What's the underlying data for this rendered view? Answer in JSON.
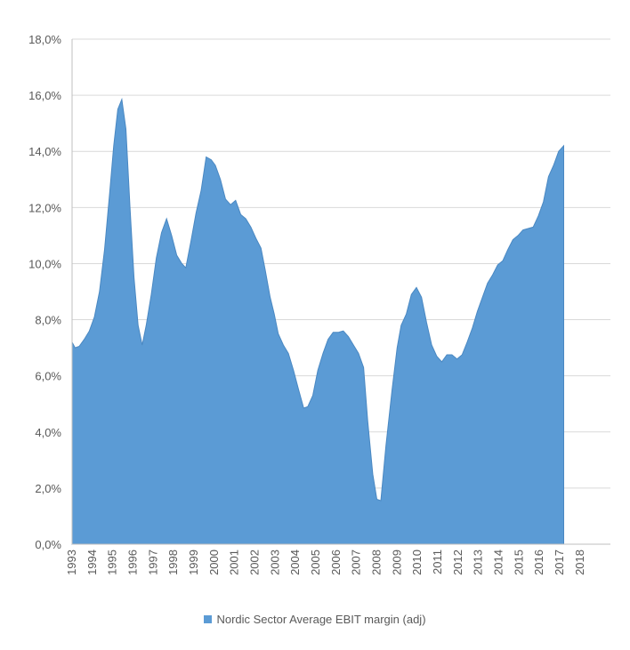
{
  "chart_data": {
    "type": "area",
    "title": "",
    "xlabel": "",
    "ylabel": "",
    "ylim": [
      0,
      18
    ],
    "y_ticks": [
      "0,0%",
      "2,0%",
      "4,0%",
      "6,0%",
      "8,0%",
      "10,0%",
      "12,0%",
      "14,0%",
      "16,0%",
      "18,0%"
    ],
    "x_tick_labels": [
      "1993",
      "1994",
      "1995",
      "1996",
      "1997",
      "1998",
      "1999",
      "2000",
      "2001",
      "2002",
      "2003",
      "2004",
      "2005",
      "2006",
      "2007",
      "2008",
      "2009",
      "2010",
      "2011",
      "2012",
      "2013",
      "2014",
      "2015",
      "2016",
      "2017",
      "2018"
    ],
    "x_range": [
      1993.0,
      2019.5
    ],
    "grid": true,
    "legend_position": "bottom",
    "series": [
      {
        "name": "Nordic Sector Average EBIT margin (adj)",
        "color": "#5b9bd5",
        "points": [
          [
            1993.0,
            7.2
          ],
          [
            1993.15,
            7.0
          ],
          [
            1993.35,
            7.05
          ],
          [
            1993.6,
            7.3
          ],
          [
            1993.85,
            7.6
          ],
          [
            1994.1,
            8.1
          ],
          [
            1994.35,
            9.0
          ],
          [
            1994.6,
            10.5
          ],
          [
            1994.85,
            12.5
          ],
          [
            1995.05,
            14.2
          ],
          [
            1995.25,
            15.5
          ],
          [
            1995.45,
            15.85
          ],
          [
            1995.65,
            14.8
          ],
          [
            1995.85,
            12.0
          ],
          [
            1996.05,
            9.5
          ],
          [
            1996.25,
            7.8
          ],
          [
            1996.45,
            7.1
          ],
          [
            1996.65,
            7.8
          ],
          [
            1996.9,
            8.9
          ],
          [
            1997.15,
            10.2
          ],
          [
            1997.4,
            11.1
          ],
          [
            1997.65,
            11.6
          ],
          [
            1997.9,
            11.0
          ],
          [
            1998.15,
            10.3
          ],
          [
            1998.4,
            10.0
          ],
          [
            1998.6,
            9.85
          ],
          [
            1998.85,
            10.8
          ],
          [
            1999.1,
            11.8
          ],
          [
            1999.35,
            12.6
          ],
          [
            1999.6,
            13.8
          ],
          [
            1999.85,
            13.7
          ],
          [
            2000.05,
            13.5
          ],
          [
            2000.3,
            13.0
          ],
          [
            2000.55,
            12.3
          ],
          [
            2000.8,
            12.1
          ],
          [
            2001.05,
            12.25
          ],
          [
            2001.3,
            11.75
          ],
          [
            2001.55,
            11.6
          ],
          [
            2001.8,
            11.3
          ],
          [
            2002.05,
            10.9
          ],
          [
            2002.3,
            10.55
          ],
          [
            2002.5,
            9.8
          ],
          [
            2002.75,
            8.8
          ],
          [
            2002.95,
            8.2
          ],
          [
            2003.15,
            7.5
          ],
          [
            2003.4,
            7.1
          ],
          [
            2003.65,
            6.8
          ],
          [
            2003.9,
            6.2
          ],
          [
            2004.15,
            5.5
          ],
          [
            2004.4,
            4.85
          ],
          [
            2004.6,
            4.9
          ],
          [
            2004.85,
            5.3
          ],
          [
            2005.1,
            6.2
          ],
          [
            2005.35,
            6.8
          ],
          [
            2005.6,
            7.3
          ],
          [
            2005.85,
            7.55
          ],
          [
            2006.1,
            7.55
          ],
          [
            2006.35,
            7.6
          ],
          [
            2006.6,
            7.4
          ],
          [
            2006.85,
            7.1
          ],
          [
            2007.1,
            6.8
          ],
          [
            2007.35,
            6.3
          ],
          [
            2007.55,
            4.4
          ],
          [
            2007.8,
            2.5
          ],
          [
            2008.0,
            1.6
          ],
          [
            2008.2,
            1.55
          ],
          [
            2008.45,
            3.5
          ],
          [
            2008.75,
            5.5
          ],
          [
            2009.0,
            7.0
          ],
          [
            2009.2,
            7.8
          ],
          [
            2009.45,
            8.2
          ],
          [
            2009.7,
            8.9
          ],
          [
            2009.95,
            9.15
          ],
          [
            2010.2,
            8.8
          ],
          [
            2010.45,
            7.9
          ],
          [
            2010.7,
            7.1
          ],
          [
            2010.95,
            6.7
          ],
          [
            2011.2,
            6.5
          ],
          [
            2011.45,
            6.75
          ],
          [
            2011.7,
            6.75
          ],
          [
            2011.95,
            6.6
          ],
          [
            2012.2,
            6.75
          ],
          [
            2012.45,
            7.2
          ],
          [
            2012.7,
            7.7
          ],
          [
            2012.95,
            8.3
          ],
          [
            2013.2,
            8.8
          ],
          [
            2013.45,
            9.3
          ],
          [
            2013.7,
            9.6
          ],
          [
            2013.95,
            9.95
          ],
          [
            2014.2,
            10.1
          ],
          [
            2014.45,
            10.5
          ],
          [
            2014.7,
            10.85
          ],
          [
            2014.95,
            11.0
          ],
          [
            2015.2,
            11.2
          ],
          [
            2015.45,
            11.25
          ],
          [
            2015.7,
            11.3
          ],
          [
            2015.95,
            11.7
          ],
          [
            2016.2,
            12.2
          ],
          [
            2016.45,
            13.1
          ],
          [
            2016.7,
            13.5
          ],
          [
            2016.95,
            14.0
          ],
          [
            2017.2,
            14.2
          ]
        ]
      }
    ]
  }
}
